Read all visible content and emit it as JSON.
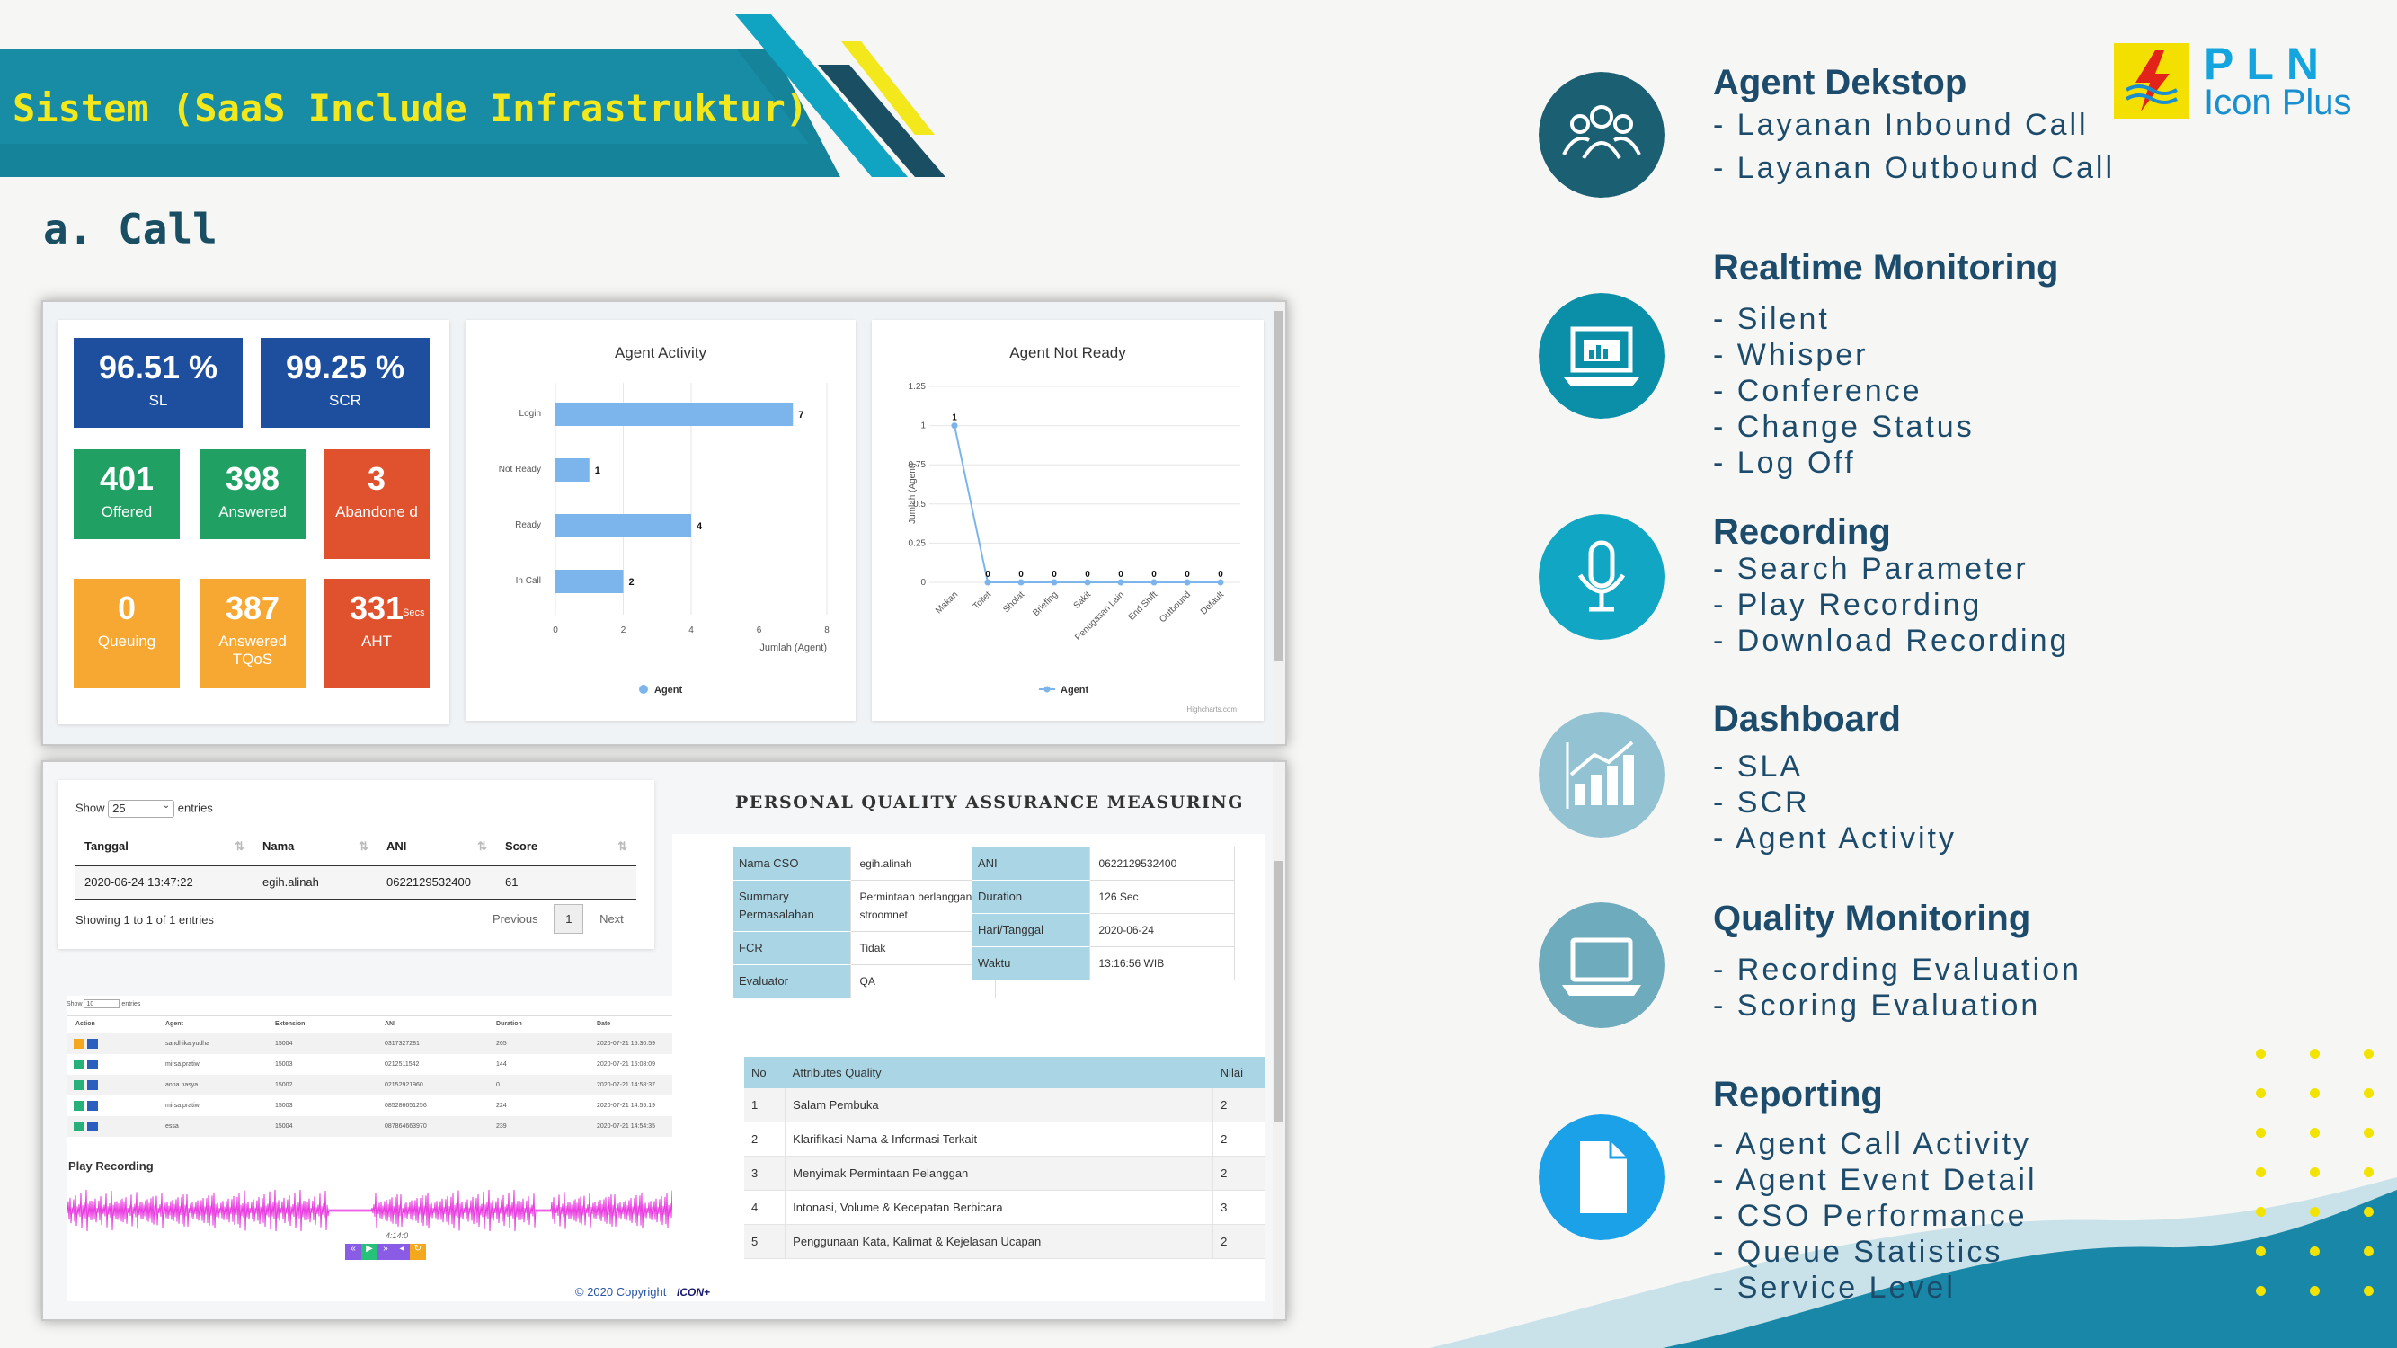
{
  "header": {
    "title": "Sistem (SaaS Include Infrastruktur)",
    "section": "a. Call"
  },
  "logo": {
    "line1": "PLN",
    "line2": "Icon Plus"
  },
  "kpis": [
    {
      "value": "96.51 %",
      "label": "SL",
      "color": "#1d4f9e"
    },
    {
      "value": "99.25 %",
      "label": "SCR",
      "color": "#1d4f9e"
    },
    {
      "value": "401",
      "label": "Offered",
      "color": "#20a163"
    },
    {
      "value": "398",
      "label": "Answered",
      "color": "#20a163"
    },
    {
      "value": "3",
      "label": "Abandone d",
      "color": "#e0512d"
    },
    {
      "value": "0",
      "label": "Queuing",
      "color": "#f7a833"
    },
    {
      "value": "387",
      "label": "Answered TQoS",
      "color": "#f7a833"
    },
    {
      "value": "331",
      "unit": "Secs",
      "label": "AHT",
      "color": "#e0512d"
    }
  ],
  "chart_data": [
    {
      "type": "bar",
      "title": "Agent Activity",
      "categories": [
        "Login",
        "Not Ready",
        "Ready",
        "In Call"
      ],
      "series": [
        {
          "name": "Agent",
          "values": [
            7,
            1,
            4,
            2
          ]
        }
      ],
      "xlabel": "Jumlah (Agent)",
      "ylabel": "",
      "xlim": [
        0,
        8
      ],
      "ticks": [
        "0",
        "2",
        "4",
        "6",
        "8"
      ],
      "legend": "bottom",
      "color": "#7cb5ec"
    },
    {
      "type": "line",
      "title": "Agent Not Ready",
      "categories": [
        "Makan",
        "Toilet",
        "Sholat",
        "Briefing",
        "Sakit",
        "Penugasan Lain",
        "End Shift",
        "Outbound",
        "Default"
      ],
      "series": [
        {
          "name": "Agent",
          "values": [
            1,
            0,
            0,
            0,
            0,
            0,
            0,
            0,
            0
          ]
        }
      ],
      "xlabel": "",
      "ylabel": "Jumlah (Agent)",
      "ylim": [
        0,
        1.25
      ],
      "ticks": [
        "0",
        "0.25",
        "0.5",
        "0.75",
        "1",
        "1.25"
      ],
      "legend": "bottom",
      "credit": "Highcharts.com",
      "color": "#7cb5ec"
    }
  ],
  "table1": {
    "show": "Show",
    "entries_value": "25",
    "entries": "entries",
    "cols": [
      "Tanggal",
      "Nama",
      "ANI",
      "Score"
    ],
    "row": [
      "2020-06-24 13:47:22",
      "egih.alinah",
      "0622129532400",
      "61"
    ],
    "info": "Showing 1 to 1 of 1 entries",
    "prev": "Previous",
    "page": "1",
    "next": "Next"
  },
  "mini": {
    "show": "Show",
    "entries_value": "10",
    "entries": "entries",
    "cols": [
      "Action",
      "Agent",
      "Extension",
      "ANI",
      "Duration",
      "Date"
    ],
    "rows": [
      [
        "sandhika.yudha",
        "15004",
        "0317327281",
        "265",
        "2020-07-21 15:30:59"
      ],
      [
        "mirsa.pratiwi",
        "15003",
        "0212511542",
        "144",
        "2020-07-21 15:08:09"
      ],
      [
        "anna.nasya",
        "15002",
        "02152921960",
        "0",
        "2020-07-21 14:58:37"
      ],
      [
        "mirsa.pratiwi",
        "15003",
        "085286651256",
        "224",
        "2020-07-21 14:55:19"
      ],
      [
        "essa",
        "15004",
        "087864663970",
        "239",
        "2020-07-21 14:54:35"
      ]
    ],
    "play": "Play Recording",
    "time": "4:14:0"
  },
  "pqa": {
    "title": "PERSONAL QUALITY ASSURANCE MEASURING",
    "left": [
      [
        "Nama CSO",
        "egih.alinah"
      ],
      [
        "Summary Permasalahan",
        "Permintaan berlangganan stroomnet"
      ],
      [
        "FCR",
        "Tidak"
      ],
      [
        "Evaluator",
        "QA"
      ]
    ],
    "right": [
      [
        "ANI",
        "0622129532400"
      ],
      [
        "Duration",
        "126 Sec"
      ],
      [
        "Hari/Tanggal",
        "2020-06-24"
      ],
      [
        "Waktu",
        "13:16:56 WIB"
      ]
    ],
    "cols": [
      "No",
      "Attributes Quality",
      "Nilai"
    ],
    "rows": [
      [
        "1",
        "Salam Pembuka",
        "2"
      ],
      [
        "2",
        "Klarifikasi Nama & Informasi Terkait",
        "2"
      ],
      [
        "3",
        "Menyimak Permintaan Pelanggan",
        "2"
      ],
      [
        "4",
        "Intonasi, Volume & Kecepatan Berbicara",
        "3"
      ],
      [
        "5",
        "Penggunaan Kata, Kalimat & Kejelasan Ucapan",
        "2"
      ]
    ]
  },
  "footer": {
    "copyright": "© 2020 Copyright",
    "brand": "ICON+"
  },
  "features": [
    {
      "title": "Agent Dekstop",
      "icon": "group-icon",
      "color": "#1b5f73",
      "items": [
        "- Layanan Inbound Call",
        "- Layanan Outbound Call"
      ]
    },
    {
      "title": "Realtime Monitoring",
      "icon": "laptop-chart-icon",
      "color": "#0b8fa8",
      "items": [
        "- Silent",
        "- Whisper",
        "- Conference",
        "- Change Status",
        "- Log Off"
      ]
    },
    {
      "title": "Recording",
      "icon": "microphone-icon",
      "color": "#11a7c4",
      "items": [
        "- Search Parameter",
        "- Play Recording",
        "- Download Recording"
      ]
    },
    {
      "title": "Dashboard",
      "icon": "growth-chart-icon",
      "color": "#93c3d2",
      "items": [
        "- SLA",
        "- SCR",
        "- Agent Activity"
      ]
    },
    {
      "title": "Quality Monitoring",
      "icon": "laptop-icon",
      "color": "#6eabbd",
      "items": [
        "- Recording Evaluation",
        "- Scoring Evaluation"
      ]
    },
    {
      "title": "Reporting",
      "icon": "document-icon",
      "color": "#1aa1e8",
      "items": [
        "- Agent Call Activity",
        "- Agent Event Detail",
        "- CSO Performance",
        "- Queue Statistics",
        "- Service Level"
      ]
    }
  ]
}
